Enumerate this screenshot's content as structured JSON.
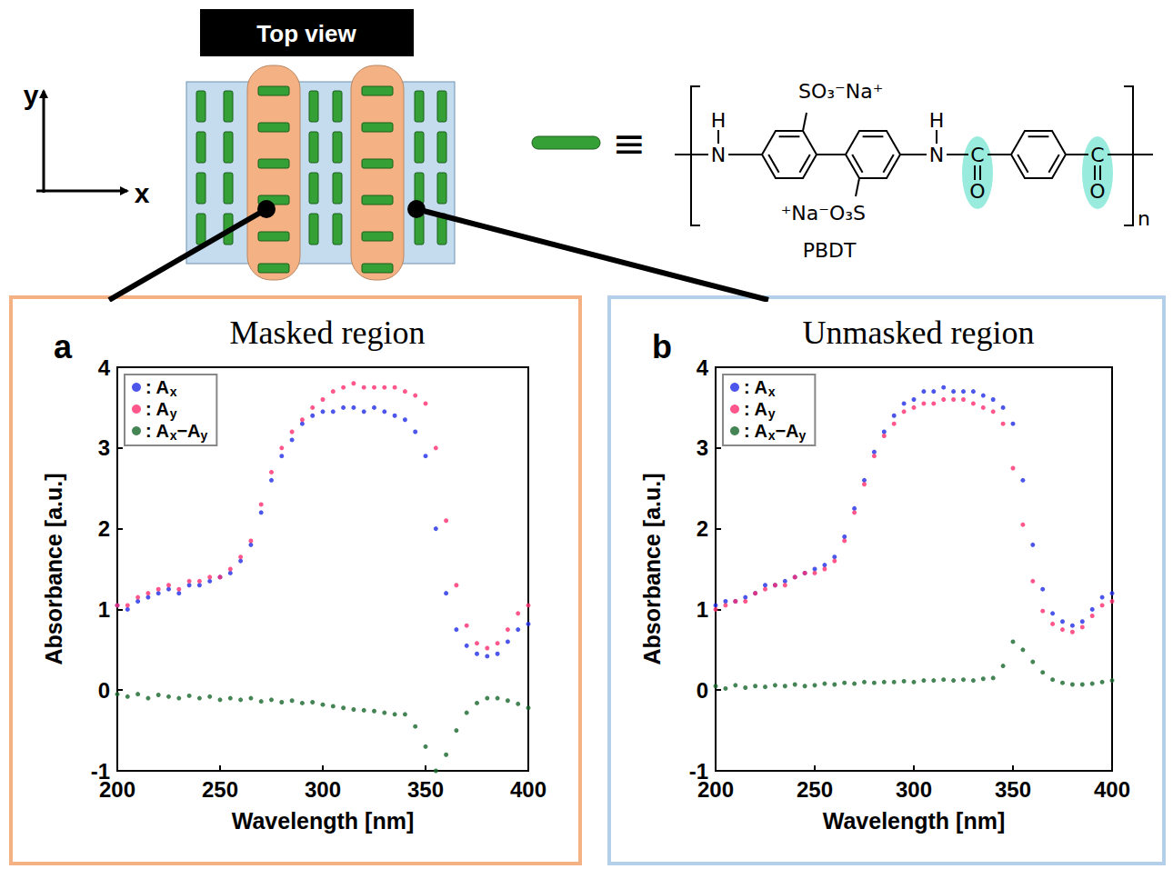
{
  "diagram": {
    "title": "Top view",
    "x_axis_label": "x",
    "y_axis_label": "y",
    "equivalence": "≡",
    "polymer": {
      "name": "PBDT",
      "amines": [
        {
          "atom": "N",
          "hydrogen": "H"
        },
        {
          "atom": "N",
          "hydrogen": "H"
        }
      ],
      "carbonyls": [
        {
          "atom": "C",
          "oxygen": "O"
        },
        {
          "atom": "C",
          "oxygen": "O"
        }
      ],
      "substituents": [
        "SO₃⁻Na⁺",
        "⁺Na⁻O₃S"
      ],
      "repeat": "n"
    }
  },
  "chart_data": [
    {
      "type": "scatter",
      "panel": "a",
      "title": "Masked region",
      "x_label": "Wavelength [nm]",
      "y_label": "Absorbance [a.u.]",
      "x": [
        200,
        205,
        210,
        215,
        220,
        225,
        230,
        235,
        240,
        245,
        250,
        255,
        260,
        265,
        270,
        275,
        280,
        285,
        290,
        295,
        300,
        305,
        310,
        315,
        320,
        325,
        330,
        335,
        340,
        345,
        350,
        355,
        360,
        365,
        370,
        375,
        380,
        385,
        390,
        395,
        400
      ],
      "series": [
        {
          "name": ": Ax",
          "color": "#1f2ce6",
          "values": [
            1.05,
            1.0,
            1.1,
            1.15,
            1.2,
            1.25,
            1.2,
            1.3,
            1.3,
            1.35,
            1.4,
            1.45,
            1.6,
            1.8,
            2.2,
            2.6,
            2.9,
            3.1,
            3.3,
            3.4,
            3.45,
            3.45,
            3.5,
            3.5,
            3.45,
            3.5,
            3.45,
            3.4,
            3.35,
            3.2,
            2.9,
            2.0,
            1.2,
            0.75,
            0.55,
            0.45,
            0.42,
            0.45,
            0.6,
            0.75,
            0.82
          ]
        },
        {
          "name": ": Ay",
          "color": "#ff2d6f",
          "values": [
            1.05,
            1.05,
            1.15,
            1.2,
            1.25,
            1.3,
            1.25,
            1.35,
            1.35,
            1.4,
            1.4,
            1.5,
            1.65,
            1.85,
            2.3,
            2.7,
            3.0,
            3.2,
            3.35,
            3.5,
            3.6,
            3.7,
            3.75,
            3.8,
            3.75,
            3.75,
            3.75,
            3.75,
            3.7,
            3.65,
            3.55,
            3.0,
            2.1,
            1.3,
            0.8,
            0.58,
            0.52,
            0.58,
            0.75,
            0.95,
            1.05
          ]
        },
        {
          "name": ": Ax−Ay",
          "color": "#17672a",
          "values": [
            -0.05,
            -0.08,
            -0.05,
            -0.1,
            -0.06,
            -0.08,
            -0.1,
            -0.07,
            -0.1,
            -0.08,
            -0.12,
            -0.1,
            -0.12,
            -0.1,
            -0.14,
            -0.12,
            -0.15,
            -0.13,
            -0.16,
            -0.15,
            -0.18,
            -0.2,
            -0.22,
            -0.24,
            -0.25,
            -0.26,
            -0.28,
            -0.3,
            -0.3,
            -0.45,
            -0.7,
            -1.0,
            -0.8,
            -0.5,
            -0.28,
            -0.16,
            -0.1,
            -0.1,
            -0.13,
            -0.17,
            -0.22
          ]
        }
      ],
      "xlim": [
        200,
        400
      ],
      "xticks": [
        200,
        250,
        300,
        350,
        400
      ],
      "ylim": [
        -1,
        4
      ],
      "yticks": [
        -1,
        0,
        1,
        2,
        3,
        4
      ],
      "grid": false,
      "legend": "upper left",
      "marker": "circle"
    },
    {
      "type": "scatter",
      "panel": "b",
      "title": "Unmasked region",
      "x_label": "Wavelength [nm]",
      "y_label": "Absorbance [a.u.]",
      "x": [
        200,
        205,
        210,
        215,
        220,
        225,
        230,
        235,
        240,
        245,
        250,
        255,
        260,
        265,
        270,
        275,
        280,
        285,
        290,
        295,
        300,
        305,
        310,
        315,
        320,
        325,
        330,
        335,
        340,
        345,
        350,
        355,
        360,
        365,
        370,
        375,
        380,
        385,
        390,
        395,
        400
      ],
      "series": [
        {
          "name": ": Ax",
          "color": "#1f2ce6",
          "values": [
            1.05,
            1.1,
            1.1,
            1.15,
            1.2,
            1.3,
            1.3,
            1.35,
            1.4,
            1.45,
            1.5,
            1.55,
            1.65,
            1.9,
            2.25,
            2.6,
            2.95,
            3.2,
            3.4,
            3.55,
            3.6,
            3.7,
            3.7,
            3.75,
            3.7,
            3.7,
            3.7,
            3.65,
            3.6,
            3.5,
            3.3,
            2.6,
            1.8,
            1.25,
            0.95,
            0.85,
            0.8,
            0.85,
            1.0,
            1.15,
            1.2
          ]
        },
        {
          "name": ": Ay",
          "color": "#ff2d6f",
          "values": [
            1.0,
            1.05,
            1.1,
            1.1,
            1.2,
            1.25,
            1.3,
            1.3,
            1.4,
            1.45,
            1.45,
            1.5,
            1.6,
            1.85,
            2.2,
            2.55,
            2.9,
            3.15,
            3.3,
            3.45,
            3.5,
            3.55,
            3.55,
            3.6,
            3.6,
            3.6,
            3.55,
            3.5,
            3.45,
            3.3,
            2.75,
            2.05,
            1.35,
            0.98,
            0.82,
            0.75,
            0.72,
            0.78,
            0.92,
            1.05,
            1.1
          ]
        },
        {
          "name": ": Ax−Ay",
          "color": "#17672a",
          "values": [
            0.05,
            0.02,
            0.06,
            0.03,
            0.05,
            0.04,
            0.06,
            0.05,
            0.07,
            0.05,
            0.06,
            0.08,
            0.07,
            0.09,
            0.08,
            0.1,
            0.09,
            0.1,
            0.1,
            0.11,
            0.1,
            0.12,
            0.12,
            0.13,
            0.12,
            0.13,
            0.12,
            0.14,
            0.15,
            0.3,
            0.6,
            0.5,
            0.35,
            0.22,
            0.13,
            0.09,
            0.07,
            0.07,
            0.08,
            0.1,
            0.12
          ]
        }
      ],
      "xlim": [
        200,
        400
      ],
      "xticks": [
        200,
        250,
        300,
        350,
        400
      ],
      "ylim": [
        -1,
        4
      ],
      "yticks": [
        -1,
        0,
        1,
        2,
        3,
        4
      ],
      "grid": false,
      "legend": "upper left",
      "marker": "circle"
    }
  ]
}
